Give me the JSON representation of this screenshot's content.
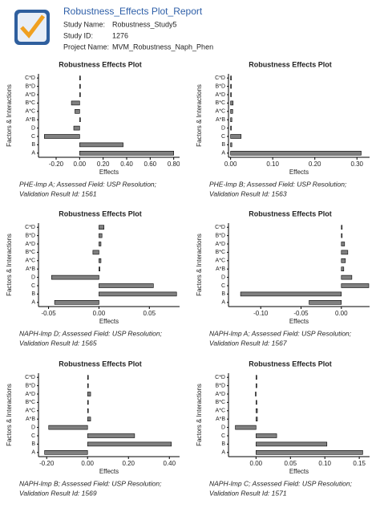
{
  "header": {
    "title": "Robustness_Effects Plot_Report",
    "fields": [
      {
        "label": "Study Name:",
        "value": "Robustness_Study5"
      },
      {
        "label": "Study ID:",
        "value": "1276"
      },
      {
        "label": "Project Name:",
        "value": "MVM_Robustness_Naph_Phen"
      }
    ]
  },
  "chart_data": [
    {
      "type": "bar",
      "orientation": "horizontal",
      "title": "Robustness Effects Plot",
      "x_label": "Effects",
      "y_label": "Factors & Interactions",
      "categories": [
        "C*D",
        "B*D",
        "A*D",
        "B*C",
        "A*C",
        "A*B",
        "D",
        "C",
        "B",
        "A"
      ],
      "values": [
        0.005,
        0,
        0.005,
        -0.07,
        -0.04,
        0,
        -0.05,
        -0.3,
        0.37,
        0.8
      ],
      "color": "#808080",
      "xlim": [
        -0.35,
        0.85
      ],
      "xticks": [
        {
          "value": -0.2,
          "label": "-0.20"
        },
        {
          "value": 0,
          "label": "0.00"
        },
        {
          "value": 0.2,
          "label": "0.20"
        },
        {
          "value": 0.4,
          "label": "0.40"
        },
        {
          "value": 0.6,
          "label": "0.60"
        },
        {
          "value": 0.8,
          "label": "0.80"
        }
      ],
      "caption": [
        "PHE-Imp A; Assessed Field:  USP Resolution;",
        "Validation Result Id:  1561"
      ]
    },
    {
      "type": "bar",
      "orientation": "horizontal",
      "title": "Robustness Effects Plot",
      "x_label": "Effects",
      "y_label": "Factors & Interactions",
      "categories": [
        "C*D",
        "B*D",
        "A*D",
        "B*C",
        "A*C",
        "A*B",
        "D",
        "C",
        "B",
        "A"
      ],
      "values": [
        0.001,
        0,
        0,
        0.006,
        0.005,
        0.003,
        0,
        0.025,
        0.003,
        0.31
      ],
      "color": "#808080",
      "xlim": [
        -0.005,
        0.33
      ],
      "xticks": [
        {
          "value": 0,
          "label": "0.00"
        },
        {
          "value": 0.1,
          "label": "0.10"
        },
        {
          "value": 0.2,
          "label": "0.20"
        },
        {
          "value": 0.3,
          "label": "0.30"
        }
      ],
      "caption": [
        "PHE-Imp B; Assessed Field:  USP Resolution;",
        "Validation Result Id:  1563"
      ]
    },
    {
      "type": "bar",
      "orientation": "horizontal",
      "title": "Robustness Effects Plot",
      "x_label": "Effects",
      "y_label": "Factors & Interactions",
      "categories": [
        "C*D",
        "B*D",
        "A*D",
        "B*C",
        "A*C",
        "A*B",
        "D",
        "C",
        "B",
        "A"
      ],
      "values": [
        0.005,
        0.003,
        0.002,
        -0.006,
        0.002,
        0.001,
        -0.047,
        0.054,
        0.077,
        -0.044
      ],
      "color": "#808080",
      "xlim": [
        -0.06,
        0.08
      ],
      "xticks": [
        -0.05,
        {
          "value": 0,
          "label": "0.00"
        },
        0.05
      ],
      "caption": [
        "NAPH-Imp D; Assessed Field:  USP Resolution;",
        "Validation Result Id:  1565"
      ]
    },
    {
      "type": "bar",
      "orientation": "horizontal",
      "title": "Robustness Effects Plot",
      "x_label": "Effects",
      "y_label": "Factors & Interactions",
      "categories": [
        "C*D",
        "B*D",
        "A*D",
        "B*C",
        "A*C",
        "A*B",
        "D",
        "C",
        "B",
        "A"
      ],
      "values": [
        0,
        0,
        0.004,
        0.008,
        0.005,
        0.003,
        0.013,
        0.034,
        -0.125,
        -0.04
      ],
      "color": "#808080",
      "xlim": [
        -0.14,
        0.035
      ],
      "xticks": [
        {
          "value": -0.1,
          "label": "-0.10"
        },
        -0.05,
        {
          "value": 0,
          "label": "0.00"
        }
      ],
      "caption": [
        "NAPH-Imp A; Assessed Field:  USP Resolution;",
        "Validation Result Id:  1567"
      ]
    },
    {
      "type": "bar",
      "orientation": "horizontal",
      "title": "Robustness Effects Plot",
      "x_label": "Effects",
      "y_label": "Factors & Interactions",
      "categories": [
        "C*D",
        "B*D",
        "A*D",
        "B*C",
        "A*C",
        "A*B",
        "D",
        "C",
        "B",
        "A"
      ],
      "values": [
        0,
        0,
        0.015,
        0,
        0,
        0.015,
        -0.19,
        0.23,
        0.41,
        -0.21
      ],
      "color": "#808080",
      "xlim": [
        -0.24,
        0.45
      ],
      "xticks": [
        {
          "value": -0.2,
          "label": "-0.20"
        },
        {
          "value": 0,
          "label": "0.00"
        },
        {
          "value": 0.2,
          "label": "0.20"
        },
        {
          "value": 0.4,
          "label": "0.40"
        }
      ],
      "caption": [
        "NAPH-Imp B; Assessed Field:  USP Resolution;",
        "Validation Result Id:  1569"
      ]
    },
    {
      "type": "bar",
      "orientation": "horizontal",
      "title": "Robustness Effects Plot",
      "x_label": "Effects",
      "y_label": "Factors & Interactions",
      "categories": [
        "C*D",
        "B*D",
        "A*D",
        "B*C",
        "A*C",
        "A*B",
        "D",
        "C",
        "B",
        "A"
      ],
      "values": [
        0.001,
        0,
        -0.001,
        0,
        0.002,
        0.002,
        -0.03,
        0.03,
        0.103,
        0.155
      ],
      "color": "#808080",
      "xlim": [
        -0.04,
        0.165
      ],
      "xticks": [
        {
          "value": 0,
          "label": "0.00"
        },
        0.05,
        {
          "value": 0.1,
          "label": "0.10"
        },
        0.15
      ],
      "caption": [
        "NAPH-Imp C; Assessed Field:  USP Resolution;",
        "Validation Result Id:  1571"
      ]
    }
  ]
}
